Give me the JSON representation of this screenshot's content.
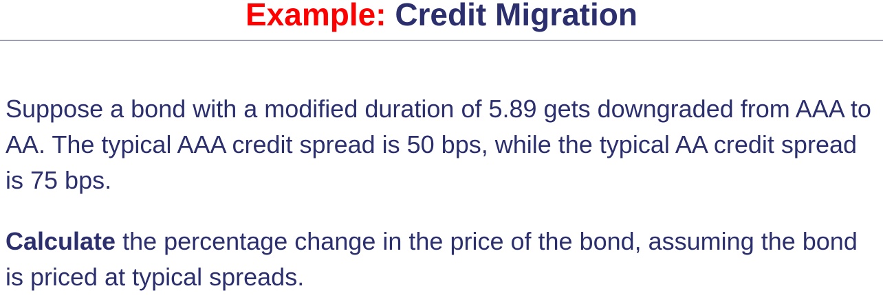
{
  "slide": {
    "title_prefix": "Example:",
    "title_main": "Credit Migration",
    "paragraph1": "Suppose a bond with a modified duration of 5.89 gets downgraded from AAA to AA. The typical AAA credit spread is 50 bps, while the typical AA credit spread is 75 bps.",
    "paragraph2_bold": "Calculate",
    "paragraph2_rest": " the percentage change in the price of the bond, assuming the bond is priced at typical spreads."
  },
  "colors": {
    "title_prefix": "#ff0000",
    "text": "#2b2f6e"
  }
}
